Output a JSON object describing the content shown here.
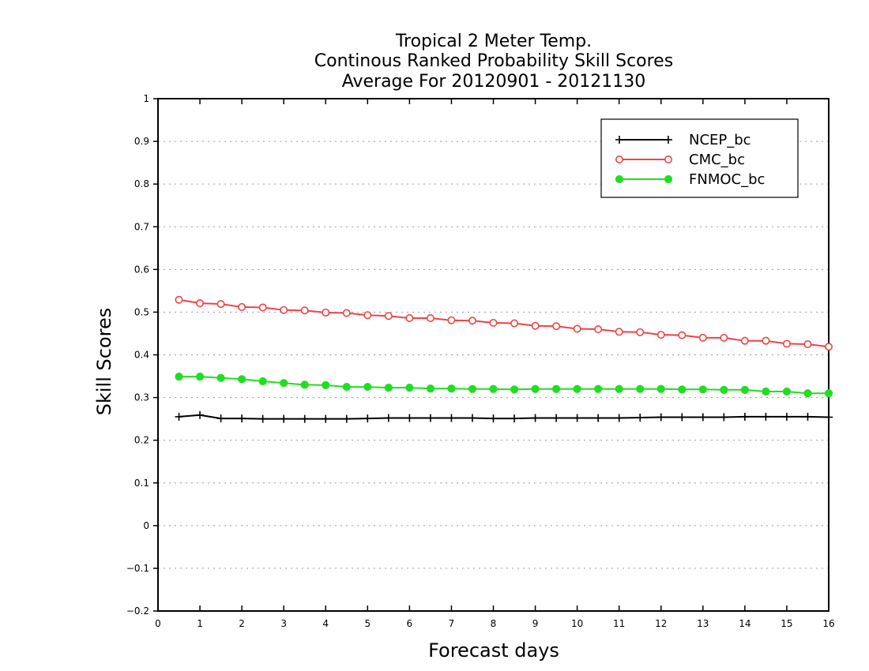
{
  "chart_data": {
    "type": "line",
    "title_lines": [
      "Tropical 2 Meter Temp.",
      "Continous Ranked Probability Skill Scores",
      "Average For 20120901 - 20121130"
    ],
    "xlabel": "Forecast days",
    "ylabel": "Skill Scores",
    "xlim": [
      0,
      16
    ],
    "ylim": [
      -0.2,
      1
    ],
    "xticks": [
      0,
      1,
      2,
      3,
      4,
      5,
      6,
      7,
      8,
      9,
      10,
      11,
      12,
      13,
      14,
      15,
      16
    ],
    "yticks": [
      -0.2,
      -0.1,
      0,
      0.1,
      0.2,
      0.3,
      0.4,
      0.5,
      0.6,
      0.7,
      0.8,
      0.9,
      1
    ],
    "ytick_labels": [
      "−0.2",
      "−0.1",
      "0",
      "0.1",
      "0.2",
      "0.3",
      "0.4",
      "0.5",
      "0.6",
      "0.7",
      "0.8",
      "0.9",
      "1"
    ],
    "grid": "horizontal dotted",
    "legend_position": "top-right",
    "x": [
      0.5,
      1,
      1.5,
      2,
      2.5,
      3,
      3.5,
      4,
      4.5,
      5,
      5.5,
      6,
      6.5,
      7,
      7.5,
      8,
      8.5,
      9,
      9.5,
      10,
      10.5,
      11,
      11.5,
      12,
      12.5,
      13,
      13.5,
      14,
      14.5,
      15,
      15.5,
      16
    ],
    "series": [
      {
        "name": "NCEP_bc",
        "color": "#000000",
        "marker": "plus",
        "values": [
          0.255,
          0.259,
          0.251,
          0.251,
          0.25,
          0.25,
          0.25,
          0.25,
          0.25,
          0.251,
          0.252,
          0.252,
          0.252,
          0.252,
          0.252,
          0.251,
          0.251,
          0.252,
          0.252,
          0.252,
          0.252,
          0.252,
          0.253,
          0.254,
          0.254,
          0.254,
          0.254,
          0.255,
          0.255,
          0.255,
          0.255,
          0.254
        ]
      },
      {
        "name": "CMC_bc",
        "color": "#ee4444",
        "marker": "open-circle",
        "values": [
          0.529,
          0.521,
          0.519,
          0.512,
          0.511,
          0.505,
          0.504,
          0.499,
          0.498,
          0.493,
          0.491,
          0.486,
          0.486,
          0.481,
          0.48,
          0.475,
          0.474,
          0.468,
          0.467,
          0.461,
          0.46,
          0.454,
          0.453,
          0.447,
          0.446,
          0.44,
          0.44,
          0.433,
          0.433,
          0.426,
          0.425,
          0.419
        ]
      },
      {
        "name": "FNMOC_bc",
        "color": "#22dd22",
        "marker": "filled-circle",
        "values": [
          0.349,
          0.349,
          0.346,
          0.343,
          0.338,
          0.334,
          0.33,
          0.329,
          0.325,
          0.325,
          0.323,
          0.323,
          0.321,
          0.321,
          0.32,
          0.32,
          0.319,
          0.32,
          0.32,
          0.32,
          0.32,
          0.32,
          0.32,
          0.32,
          0.319,
          0.319,
          0.318,
          0.318,
          0.314,
          0.314,
          0.31,
          0.31
        ]
      }
    ]
  }
}
